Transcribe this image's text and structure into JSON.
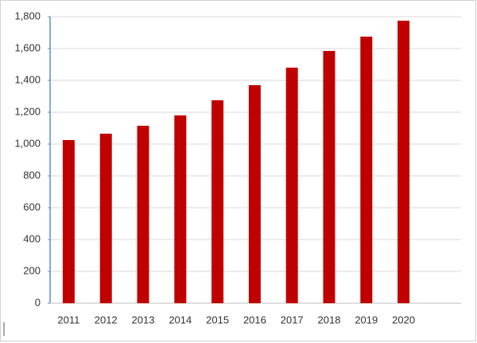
{
  "chart_data": {
    "type": "bar",
    "categories": [
      "2011",
      "2012",
      "2013",
      "2014",
      "2015",
      "2016",
      "2017",
      "2018",
      "2019",
      "2020"
    ],
    "values": [
      1025,
      1065,
      1115,
      1180,
      1275,
      1370,
      1480,
      1585,
      1675,
      1775
    ],
    "color": "#c00000",
    "ylim": [
      0,
      1800
    ],
    "yticks": [
      0,
      200,
      400,
      600,
      800,
      {
        "value": 1000,
        "label": "1,000"
      },
      {
        "value": 1200,
        "label": "1,200"
      },
      {
        "value": 1400,
        "label": "1,400"
      },
      {
        "value": 1600,
        "label": "1,600"
      },
      {
        "value": 1800,
        "label": "1,800"
      }
    ],
    "grid": true
  }
}
